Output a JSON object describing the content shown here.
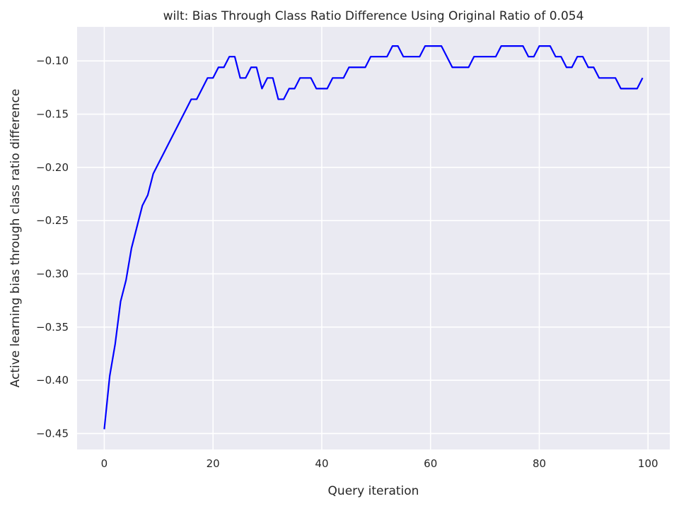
{
  "chart_data": {
    "type": "line",
    "title": "wilt: Bias Through Class Ratio Difference Using Original Ratio of 0.054",
    "xlabel": "Query iteration",
    "ylabel": "Active learning bias through class ratio difference",
    "xlim": [
      -5,
      104
    ],
    "ylim": [
      -0.465,
      -0.068
    ],
    "xticks": [
      0,
      20,
      40,
      60,
      80,
      100
    ],
    "yticks": [
      -0.45,
      -0.4,
      -0.35,
      -0.3,
      -0.25,
      -0.2,
      -0.15,
      -0.1
    ],
    "grid": true,
    "colors": {
      "background": "#eaeaf2",
      "grid": "#ffffff",
      "line": "#0000ff"
    },
    "series": [
      {
        "name": "",
        "x": [
          0,
          1,
          2,
          3,
          4,
          5,
          6,
          7,
          8,
          9,
          10,
          11,
          12,
          13,
          14,
          15,
          16,
          17,
          18,
          19,
          20,
          21,
          22,
          23,
          24,
          25,
          26,
          27,
          28,
          29,
          30,
          31,
          32,
          33,
          34,
          35,
          36,
          37,
          38,
          39,
          40,
          41,
          42,
          43,
          44,
          45,
          46,
          47,
          48,
          49,
          50,
          51,
          52,
          53,
          54,
          55,
          56,
          57,
          58,
          59,
          60,
          61,
          62,
          63,
          64,
          65,
          66,
          67,
          68,
          69,
          70,
          71,
          72,
          73,
          74,
          75,
          76,
          77,
          78,
          79,
          80,
          81,
          82,
          83,
          84,
          85,
          86,
          87,
          88,
          89,
          90,
          91,
          92,
          93,
          94,
          95,
          96,
          97,
          98,
          99
        ],
        "y": [
          -0.446,
          -0.396,
          -0.366,
          -0.326,
          -0.306,
          -0.276,
          -0.256,
          -0.236,
          -0.226,
          -0.206,
          -0.196,
          -0.186,
          -0.176,
          -0.166,
          -0.156,
          -0.146,
          -0.136,
          -0.136,
          -0.126,
          -0.116,
          -0.116,
          -0.106,
          -0.106,
          -0.096,
          -0.096,
          -0.116,
          -0.116,
          -0.106,
          -0.106,
          -0.126,
          -0.116,
          -0.116,
          -0.136,
          -0.136,
          -0.126,
          -0.126,
          -0.116,
          -0.116,
          -0.116,
          -0.126,
          -0.126,
          -0.126,
          -0.116,
          -0.116,
          -0.116,
          -0.106,
          -0.106,
          -0.106,
          -0.106,
          -0.096,
          -0.096,
          -0.096,
          -0.096,
          -0.086,
          -0.086,
          -0.096,
          -0.096,
          -0.096,
          -0.096,
          -0.086,
          -0.086,
          -0.086,
          -0.086,
          -0.096,
          -0.106,
          -0.106,
          -0.106,
          -0.106,
          -0.096,
          -0.096,
          -0.096,
          -0.096,
          -0.096,
          -0.086,
          -0.086,
          -0.086,
          -0.086,
          -0.086,
          -0.096,
          -0.096,
          -0.086,
          -0.086,
          -0.086,
          -0.096,
          -0.096,
          -0.106,
          -0.106,
          -0.096,
          -0.096,
          -0.106,
          -0.106,
          -0.116,
          -0.116,
          -0.116,
          -0.116,
          -0.126,
          -0.126,
          -0.126,
          -0.126,
          -0.116
        ]
      }
    ]
  }
}
